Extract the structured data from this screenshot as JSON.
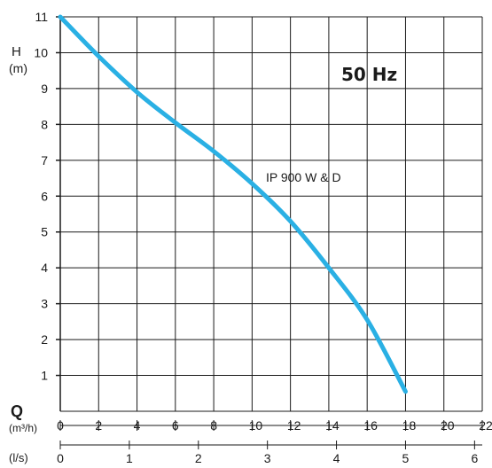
{
  "chart_data": {
    "type": "line",
    "annotation": "50 Hz",
    "y_axis": {
      "label_symbol": "H",
      "label_unit": "(m)",
      "range": [
        0,
        11
      ],
      "ticks": [
        1,
        2,
        3,
        4,
        5,
        6,
        7,
        8,
        9,
        10,
        11
      ]
    },
    "x_axis_primary": {
      "label_symbol": "Q",
      "label_unit": "(m³/h)",
      "range": [
        0,
        22
      ],
      "ticks": [
        0,
        2,
        4,
        6,
        8,
        10,
        12,
        14,
        16,
        18,
        20,
        22
      ]
    },
    "x_axis_secondary": {
      "label_unit": "(l/s)",
      "ticks": [
        0,
        1,
        2,
        3,
        4,
        5,
        6
      ]
    },
    "grid": true,
    "series": [
      {
        "name": "IP 900 W & D",
        "color": "#2ab0e4",
        "x": [
          0,
          2,
          4,
          6,
          8,
          10,
          12,
          14,
          16,
          18
        ],
        "y": [
          11,
          9.9,
          8.9,
          8.05,
          7.25,
          6.35,
          5.3,
          4.0,
          2.55,
          0.55
        ]
      }
    ]
  }
}
